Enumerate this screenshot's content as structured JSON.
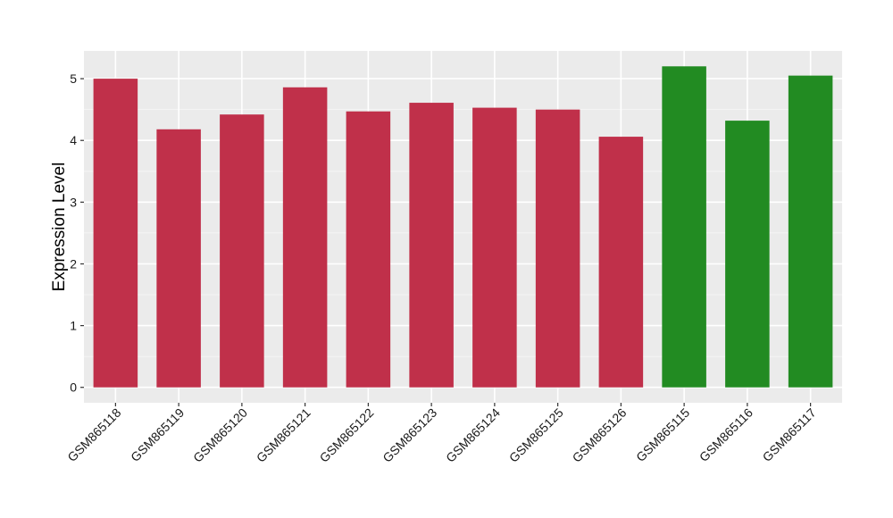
{
  "chart_data": {
    "type": "bar",
    "title": "",
    "xlabel": "",
    "ylabel": "Expression Level",
    "ylim": [
      -0.25,
      5.45
    ],
    "yticks": [
      0,
      1,
      2,
      3,
      4,
      5
    ],
    "grid": true,
    "legend": "none",
    "categories": [
      "GSM865118",
      "GSM865119",
      "GSM865120",
      "GSM865121",
      "GSM865122",
      "GSM865123",
      "GSM865124",
      "GSM865125",
      "GSM865126",
      "GSM865115",
      "GSM865116",
      "GSM865117"
    ],
    "values": [
      5.0,
      4.18,
      4.42,
      4.86,
      4.47,
      4.61,
      4.53,
      4.5,
      4.06,
      5.2,
      4.32,
      5.05
    ],
    "bar_colors": [
      "#c0304a",
      "#c0304a",
      "#c0304a",
      "#c0304a",
      "#c0304a",
      "#c0304a",
      "#c0304a",
      "#c0304a",
      "#c0304a",
      "#228b22",
      "#228b22",
      "#228b22"
    ],
    "colors": {
      "panel_background": "#ebebeb",
      "grid_major": "#ffffff",
      "grid_minor": "#f5f5f5",
      "tick_mark": "#333333"
    }
  }
}
